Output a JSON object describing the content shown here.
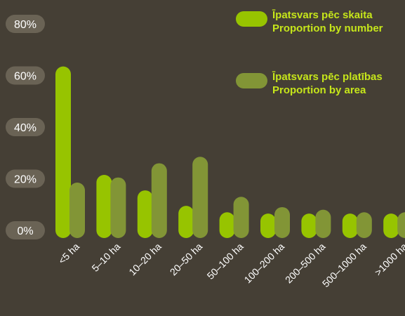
{
  "colors": {
    "background": "#453f35",
    "number": "#97c400",
    "area": "#829536",
    "tick_pill": "#6a6355",
    "legend_text": "#c6e61a"
  },
  "legend": [
    {
      "series": 0,
      "line1": "Īpatsvars pēc skaita",
      "line2": "Proportion by number"
    },
    {
      "series": 1,
      "line1": "Īpatsvars pēc platības",
      "line2": "Proportion by area"
    }
  ],
  "chart_data": {
    "type": "bar",
    "categories": [
      "<5 ha",
      "5–10 ha",
      "10–20 ha",
      "20–50 ha",
      "50–100 ha",
      "100–200 ha",
      "200–500 ha",
      "500–1000 ha",
      ">1000 ha"
    ],
    "series": [
      {
        "name": "Īpatsvars pēc skaita / Proportion by number",
        "values": [
          60.5,
          18.5,
          12.5,
          6.5,
          4.0,
          3.5,
          3.5,
          3.5,
          3.5
        ]
      },
      {
        "name": "Īpatsvars pēc platības / Proportion by area",
        "values": [
          15.5,
          17.5,
          23.0,
          25.5,
          10.0,
          6.0,
          5.0,
          4.0,
          4.0
        ]
      }
    ],
    "yticks": [
      "0%",
      "20%",
      "40%",
      "60%",
      "80%"
    ],
    "ytick_values": [
      0,
      20,
      40,
      60,
      80
    ],
    "ylim": [
      0,
      80
    ],
    "grid": false,
    "legend_position": "top-right",
    "xlabel": "",
    "ylabel": ""
  }
}
